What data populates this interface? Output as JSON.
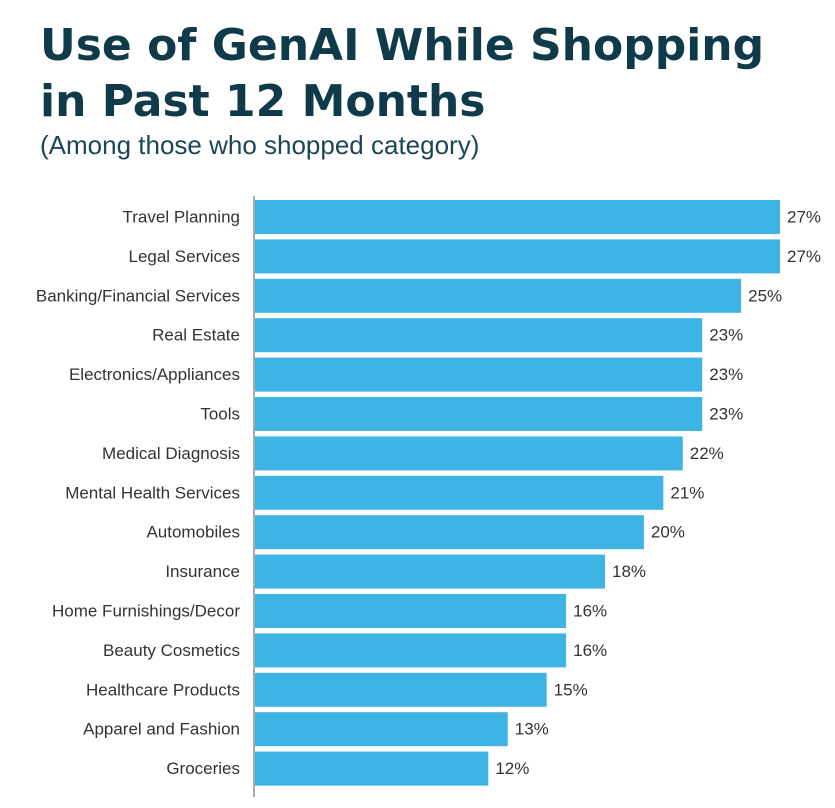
{
  "chart_data": {
    "type": "bar",
    "orientation": "horizontal",
    "title_lines": [
      "Use of GenAI While Shopping",
      "in Past 12 Months"
    ],
    "subtitle": "(Among those who shopped category)",
    "categories": [
      "Travel Planning",
      "Legal Services",
      "Banking/Financial Services",
      "Real Estate",
      "Electronics/Appliances",
      "Tools",
      "Medical Diagnosis",
      "Mental Health Services",
      "Automobiles",
      "Insurance",
      "Home Furnishings/Decor",
      "Beauty Cosmetics",
      "Healthcare Products",
      "Apparel and Fashion",
      "Groceries"
    ],
    "values": [
      27,
      27,
      25,
      23,
      23,
      23,
      22,
      21,
      20,
      18,
      16,
      16,
      15,
      13,
      12
    ],
    "value_labels": [
      "27%",
      "27%",
      "25%",
      "23%",
      "23%",
      "23%",
      "22%",
      "21%",
      "20%",
      "18%",
      "16%",
      "16%",
      "15%",
      "13%",
      "12%"
    ],
    "unit": "%",
    "xlim": [
      0,
      27
    ],
    "grid": false,
    "legend": "none",
    "colors": {
      "bar": "#3db4e4",
      "title": "#0f3a4a",
      "subtitle": "#1c4657",
      "axis": "#555555",
      "label": "#333333"
    }
  }
}
